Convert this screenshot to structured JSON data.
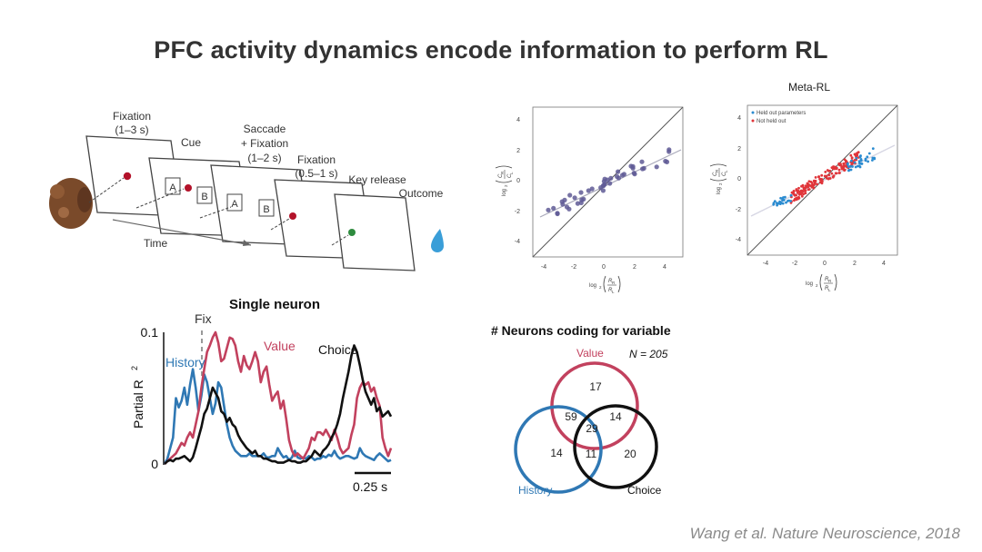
{
  "title": "PFC activity dynamics encode information to perform RL",
  "citation": "Wang et al. Nature Neuroscience, 2018",
  "task": {
    "fixation1": [
      "Fixation",
      "(1–3 s)"
    ],
    "cue": "Cue",
    "saccade": [
      "Saccade",
      "+ Fixation",
      "(1–2 s)"
    ],
    "fixation2": [
      "Fixation",
      "(0.5–1 s)"
    ],
    "key_release": "Key release",
    "outcome": "Outcome",
    "time": "Time",
    "target_a": "A",
    "target_b": "B",
    "colors": {
      "cue_dot": "#b3122a",
      "outcome_dot": "#2e8b3e",
      "drop": "#3a9ed8"
    }
  },
  "scatter_left": {
    "xlabel_base": "log",
    "xlabel_sub": "2",
    "xlabel_num": "R",
    "xlabel_num_sub": "R",
    "xlabel_den": "R",
    "xlabel_den_sub": "L",
    "ylabel_base": "log",
    "ylabel_sub": "2",
    "ylabel_num": "C",
    "ylabel_num_sub": "R",
    "ylabel_den": "C",
    "ylabel_den_sub": "L",
    "xticks": [
      "-4",
      "-2",
      "0",
      "2",
      "4"
    ],
    "yticks": [
      "4",
      "2",
      "0",
      "-2",
      "-4"
    ]
  },
  "scatter_right": {
    "title": "Meta-RL",
    "legend": [
      "Held out parameters",
      "Not held out"
    ],
    "xticks": [
      "-4",
      "-2",
      "0",
      "2",
      "4"
    ],
    "yticks": [
      "4",
      "2",
      "0",
      "-2",
      "-4"
    ]
  },
  "single_neuron": {
    "title": "Single neuron",
    "fix": "Fix",
    "history": "History",
    "value": "Value",
    "choice": "Choice",
    "ylabel": "Partial R",
    "ylabel_sup": "2",
    "ytick_top": "0.1",
    "ytick_bottom": "0",
    "scalebar": "0.25 s"
  },
  "venn": {
    "title": "# Neurons coding for variable",
    "n_label": "N = 205",
    "value": "Value",
    "history": "History",
    "choice": "Choice",
    "counts": {
      "value_only": "17",
      "value_history": "59",
      "all_three": "29",
      "value_choice": "14",
      "history_only": "14",
      "history_choice": "11",
      "choice_only": "20"
    },
    "colors": {
      "value": "#c2415e",
      "history": "#2f78b4",
      "choice": "#111111"
    }
  },
  "chart_data": {
    "type": "line",
    "title": "Single neuron",
    "xlabel": "",
    "ylabel": "Partial R2",
    "ylim": [
      0,
      0.1
    ],
    "series": [
      {
        "name": "History",
        "color": "#2f78b4",
        "values": [
          0.0,
          0.004,
          0.012,
          0.02,
          0.05,
          0.043,
          0.048,
          0.058,
          0.045,
          0.06,
          0.072,
          0.058,
          0.04,
          0.052,
          0.068,
          0.062,
          0.05,
          0.038,
          0.046,
          0.062,
          0.058,
          0.044,
          0.03,
          0.02,
          0.014,
          0.01,
          0.008,
          0.006,
          0.006,
          0.006,
          0.008,
          0.006,
          0.006,
          0.006,
          0.006,
          0.008,
          0.005,
          0.005,
          0.006,
          0.006,
          0.012,
          0.008,
          0.005,
          0.006,
          0.003,
          0.005,
          0.01,
          0.005,
          0.004,
          0.005,
          0.004,
          0.006,
          0.005,
          0.003,
          0.004,
          0.004,
          0.006,
          0.005,
          0.007,
          0.006,
          0.01,
          0.006,
          0.004,
          0.005,
          0.006,
          0.006,
          0.005,
          0.004,
          0.005,
          0.012,
          0.008,
          0.006,
          0.005,
          0.004,
          0.003,
          0.006,
          0.008,
          0.006,
          0.004,
          0.002,
          0.003
        ]
      },
      {
        "name": "Value",
        "color": "#c2415e",
        "values": [
          0.0,
          0.002,
          0.004,
          0.006,
          0.008,
          0.012,
          0.016,
          0.014,
          0.02,
          0.024,
          0.02,
          0.03,
          0.04,
          0.058,
          0.072,
          0.085,
          0.09,
          0.096,
          0.1,
          0.092,
          0.078,
          0.08,
          0.088,
          0.096,
          0.095,
          0.09,
          0.078,
          0.07,
          0.082,
          0.075,
          0.072,
          0.078,
          0.085,
          0.078,
          0.062,
          0.07,
          0.074,
          0.06,
          0.048,
          0.052,
          0.055,
          0.042,
          0.048,
          0.034,
          0.018,
          0.01,
          0.006,
          0.008,
          0.006,
          0.004,
          0.008,
          0.012,
          0.02,
          0.018,
          0.024,
          0.024,
          0.022,
          0.026,
          0.022,
          0.018,
          0.026,
          0.02,
          0.012,
          0.008,
          0.01,
          0.012,
          0.022,
          0.03,
          0.05,
          0.058,
          0.062,
          0.06,
          0.062,
          0.055,
          0.058,
          0.05,
          0.044,
          0.02,
          0.012,
          0.006,
          0.012
        ]
      },
      {
        "name": "Choice",
        "color": "#111111",
        "values": [
          0.0,
          0.002,
          0.003,
          0.002,
          0.004,
          0.004,
          0.005,
          0.006,
          0.004,
          0.002,
          0.005,
          0.012,
          0.02,
          0.028,
          0.038,
          0.042,
          0.05,
          0.058,
          0.054,
          0.05,
          0.04,
          0.038,
          0.032,
          0.035,
          0.03,
          0.028,
          0.022,
          0.018,
          0.015,
          0.012,
          0.01,
          0.008,
          0.01,
          0.006,
          0.006,
          0.004,
          0.004,
          0.003,
          0.002,
          0.002,
          0.001,
          0.001,
          0.001,
          0.002,
          0.003,
          0.002,
          0.002,
          0.001,
          0.001,
          0.002,
          0.002,
          0.004,
          0.006,
          0.01,
          0.008,
          0.006,
          0.01,
          0.012,
          0.015,
          0.02,
          0.024,
          0.03,
          0.038,
          0.05,
          0.06,
          0.07,
          0.082,
          0.09,
          0.085,
          0.075,
          0.064,
          0.055,
          0.05,
          0.045,
          0.05,
          0.04,
          0.043,
          0.036,
          0.038,
          0.04,
          0.036
        ]
      }
    ]
  }
}
